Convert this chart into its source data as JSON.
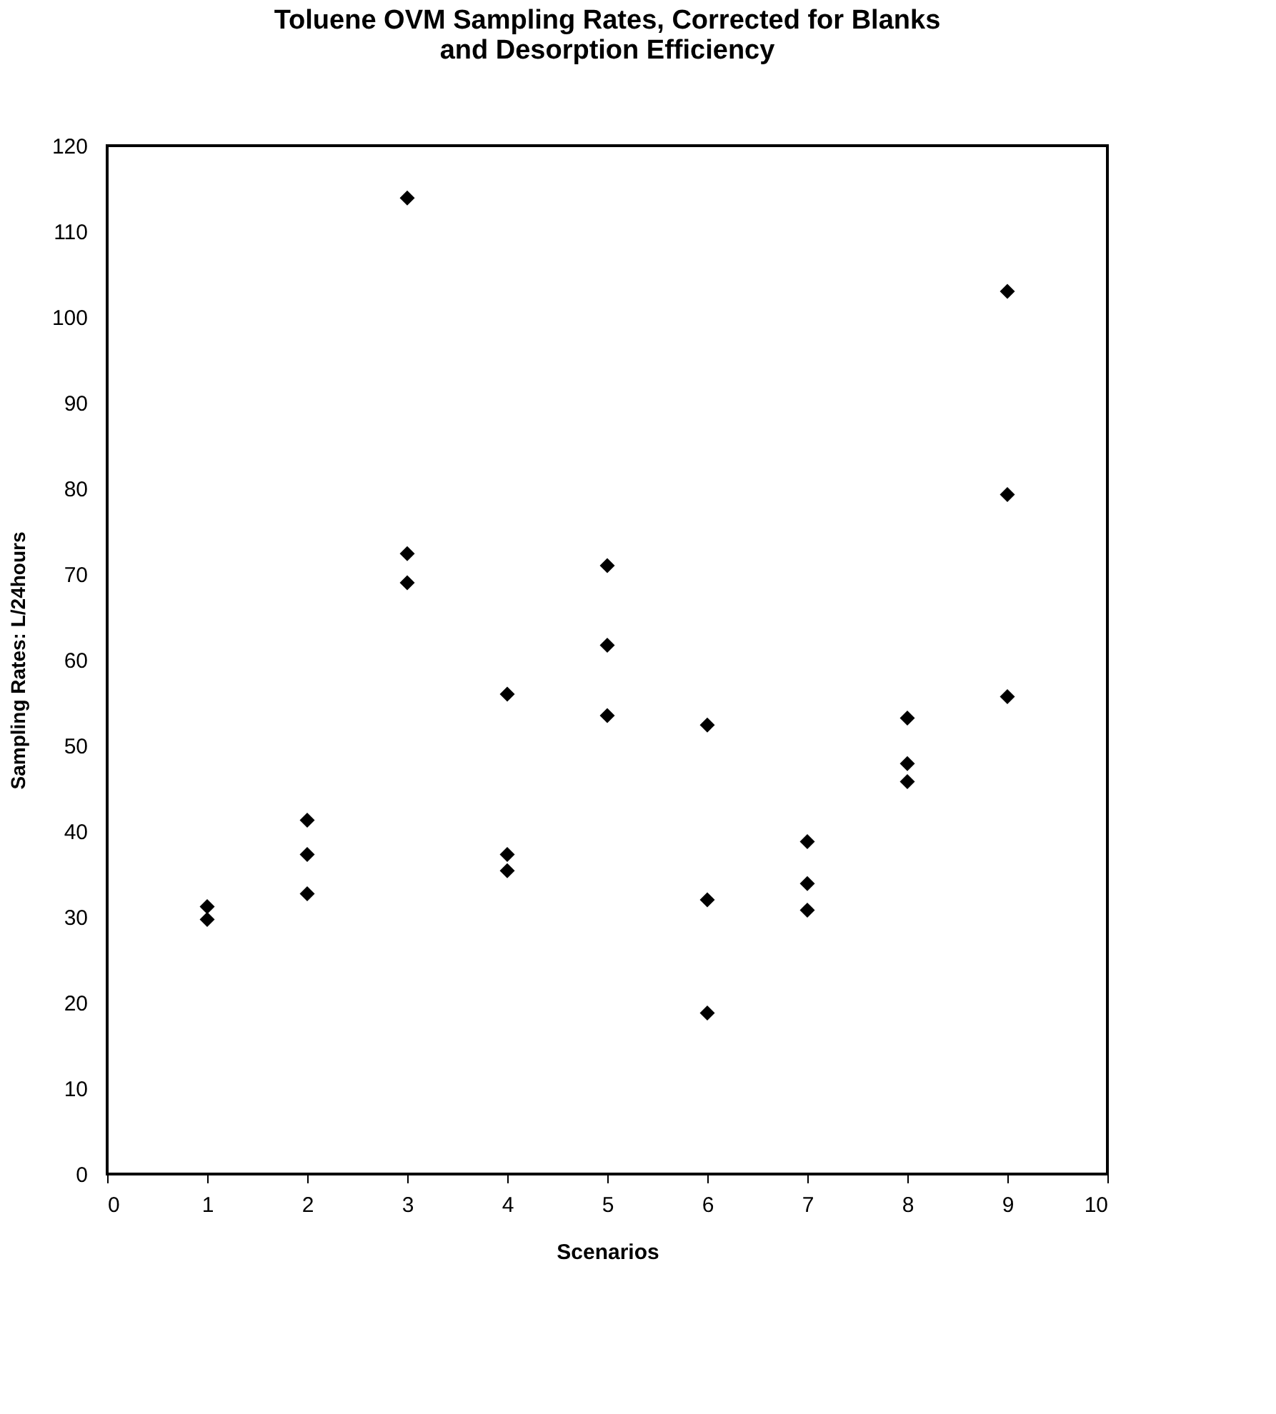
{
  "chart_data": {
    "type": "scatter",
    "title": "Toluene OVM Sampling Rates, Corrected for Blanks and Desorption Efficiency",
    "xlabel": "Scenarios",
    "ylabel": "Sampling Rates:  L/24hours",
    "x": [
      1,
      1,
      2,
      2,
      2,
      3,
      3,
      3,
      4,
      4,
      4,
      5,
      5,
      5,
      6,
      6,
      6,
      7,
      7,
      7,
      8,
      8,
      8,
      9,
      9,
      9
    ],
    "series": [
      {
        "color": "#000000",
        "values": [
          31.2,
          29.7,
          41.3,
          37.3,
          32.7,
          113.9,
          72.4,
          69.0,
          56.0,
          37.3,
          35.4,
          71.0,
          61.7,
          53.5,
          52.4,
          32.0,
          18.8,
          38.8,
          33.9,
          30.8,
          53.2,
          47.9,
          45.8,
          103.0,
          79.3,
          55.7
        ]
      }
    ],
    "xlim": [
      0,
      10
    ],
    "xticks": [
      0,
      1,
      2,
      3,
      4,
      5,
      6,
      7,
      8,
      9,
      10
    ],
    "ylim": [
      0,
      120
    ],
    "yticks": [
      0,
      10,
      20,
      30,
      40,
      50,
      60,
      70,
      80,
      90,
      100,
      110,
      120
    ],
    "marker": "diamond",
    "grid": false
  }
}
